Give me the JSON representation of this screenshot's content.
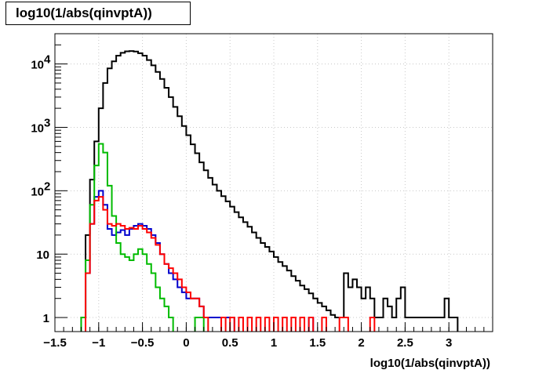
{
  "title": "log10(1/abs(qinvptA))",
  "chart_data": {
    "type": "line",
    "title": "log10(1/abs(qinvptA))",
    "xlabel": "log10(1/abs(qinvptA))",
    "ylabel": "",
    "xlim": [
      -1.5,
      3.5
    ],
    "ylim": [
      0.6,
      30000
    ],
    "yscale": "log",
    "grid": true,
    "x_ticks": [
      -1.5,
      -1,
      -0.5,
      0,
      0.5,
      1,
      1.5,
      2,
      2.5,
      3
    ],
    "x_tick_labels": [
      "−1.5",
      "−1",
      "−0.5",
      "0",
      "0.5",
      "1",
      "1.5",
      "2",
      "2.5",
      "3"
    ],
    "y_ticks": [
      1,
      10,
      100,
      1000,
      10000
    ],
    "y_tick_labels": [
      {
        "base": "1",
        "exp": ""
      },
      {
        "base": "10",
        "exp": ""
      },
      {
        "base": "10",
        "exp": "2"
      },
      {
        "base": "10",
        "exp": "3"
      },
      {
        "base": "10",
        "exp": "4"
      }
    ],
    "series": [
      {
        "color": "#000000",
        "points": [
          [
            -1.2,
            1
          ],
          [
            -1.15,
            20
          ],
          [
            -1.1,
            150
          ],
          [
            -1.05,
            600
          ],
          [
            -1,
            2000
          ],
          [
            -0.95,
            5000
          ],
          [
            -0.9,
            8500
          ],
          [
            -0.85,
            11000
          ],
          [
            -0.8,
            13500
          ],
          [
            -0.75,
            15000
          ],
          [
            -0.7,
            15800
          ],
          [
            -0.65,
            16000
          ],
          [
            -0.6,
            15700
          ],
          [
            -0.55,
            14800
          ],
          [
            -0.5,
            13500
          ],
          [
            -0.45,
            11500
          ],
          [
            -0.4,
            9500
          ],
          [
            -0.35,
            7500
          ],
          [
            -0.3,
            5800
          ],
          [
            -0.25,
            4200
          ],
          [
            -0.2,
            3000
          ],
          [
            -0.15,
            2100
          ],
          [
            -0.1,
            1500
          ],
          [
            -0.05,
            1050
          ],
          [
            0,
            750
          ],
          [
            0.05,
            540
          ],
          [
            0.1,
            390
          ],
          [
            0.15,
            280
          ],
          [
            0.2,
            210
          ],
          [
            0.25,
            160
          ],
          [
            0.3,
            125
          ],
          [
            0.35,
            100
          ],
          [
            0.4,
            82
          ],
          [
            0.45,
            68
          ],
          [
            0.5,
            56
          ],
          [
            0.55,
            46
          ],
          [
            0.6,
            38
          ],
          [
            0.65,
            32
          ],
          [
            0.7,
            27
          ],
          [
            0.75,
            22
          ],
          [
            0.8,
            18
          ],
          [
            0.85,
            15
          ],
          [
            0.9,
            13
          ],
          [
            0.95,
            11
          ],
          [
            1,
            9
          ],
          [
            1.05,
            7.5
          ],
          [
            1.1,
            6.5
          ],
          [
            1.15,
            5.5
          ],
          [
            1.2,
            4.5
          ],
          [
            1.25,
            3.8
          ],
          [
            1.3,
            3.2
          ],
          [
            1.35,
            2.8
          ],
          [
            1.4,
            2.4
          ],
          [
            1.45,
            2
          ],
          [
            1.5,
            1.7
          ],
          [
            1.55,
            1.5
          ],
          [
            1.6,
            1.3
          ],
          [
            1.65,
            1.1
          ],
          [
            1.7,
            1
          ],
          [
            1.75,
            1
          ],
          [
            1.8,
            5
          ],
          [
            1.85,
            3
          ],
          [
            1.9,
            4
          ],
          [
            1.95,
            3
          ],
          [
            2,
            2
          ],
          [
            2.05,
            3
          ],
          [
            2.1,
            2
          ],
          [
            2.15,
            1
          ],
          [
            2.2,
            1
          ],
          [
            2.25,
            2
          ],
          [
            2.3,
            1.5
          ],
          [
            2.35,
            1
          ],
          [
            2.4,
            2
          ],
          [
            2.45,
            3
          ],
          [
            2.5,
            1
          ],
          [
            2.55,
            1
          ],
          [
            2.6,
            1
          ],
          [
            2.65,
            1
          ],
          [
            2.7,
            1
          ],
          [
            2.75,
            1
          ],
          [
            2.8,
            1
          ],
          [
            2.85,
            1
          ],
          [
            2.9,
            1
          ],
          [
            2.95,
            2
          ],
          [
            3,
            1
          ],
          [
            3.05,
            1
          ]
        ]
      },
      {
        "color": "#0000cc",
        "points": [
          [
            -1.2,
            1
          ],
          [
            -1.15,
            5
          ],
          [
            -1.1,
            30
          ],
          [
            -1.05,
            80
          ],
          [
            -1,
            100
          ],
          [
            -0.95,
            60
          ],
          [
            -0.9,
            25
          ],
          [
            -0.85,
            20
          ],
          [
            -0.8,
            22
          ],
          [
            -0.75,
            24
          ],
          [
            -0.7,
            20
          ],
          [
            -0.65,
            25
          ],
          [
            -0.6,
            28
          ],
          [
            -0.55,
            30
          ],
          [
            -0.5,
            28
          ],
          [
            -0.45,
            25
          ],
          [
            -0.4,
            20
          ],
          [
            -0.35,
            15
          ],
          [
            -0.3,
            10
          ],
          [
            -0.25,
            7
          ],
          [
            -0.2,
            5
          ],
          [
            -0.15,
            4
          ],
          [
            -0.1,
            3
          ],
          [
            -0.05,
            2.5
          ],
          [
            0,
            2
          ],
          [
            0.05,
            2
          ],
          [
            0.1,
            2
          ],
          [
            0.15,
            1.5
          ],
          [
            0.2,
            1
          ],
          [
            0.25,
            1
          ],
          [
            0.3,
            1
          ],
          [
            0.35,
            1
          ],
          [
            0.4,
            1
          ],
          [
            0.45,
            1
          ],
          [
            0.5,
            1
          ],
          [
            1.4,
            1
          ]
        ]
      },
      {
        "color": "#00bb00",
        "points": [
          [
            -1.2,
            1
          ],
          [
            -1.15,
            8
          ],
          [
            -1.1,
            60
          ],
          [
            -1.05,
            250
          ],
          [
            -1,
            550
          ],
          [
            -0.95,
            400
          ],
          [
            -0.9,
            120
          ],
          [
            -0.85,
            40
          ],
          [
            -0.8,
            15
          ],
          [
            -0.75,
            10
          ],
          [
            -0.7,
            9
          ],
          [
            -0.65,
            8
          ],
          [
            -0.6,
            10
          ],
          [
            -0.55,
            12
          ],
          [
            -0.5,
            10
          ],
          [
            -0.45,
            7
          ],
          [
            -0.4,
            5
          ],
          [
            -0.35,
            3
          ],
          [
            -0.3,
            2
          ],
          [
            -0.25,
            1.5
          ],
          [
            -0.2,
            1
          ],
          [
            0.1,
            1
          ],
          [
            0.15,
            1
          ]
        ]
      },
      {
        "color": "#ff0000",
        "points": [
          [
            -1.15,
            5
          ],
          [
            -1.1,
            30
          ],
          [
            -1.05,
            70
          ],
          [
            -1,
            80
          ],
          [
            -0.95,
            50
          ],
          [
            -0.9,
            30
          ],
          [
            -0.85,
            28
          ],
          [
            -0.8,
            30
          ],
          [
            -0.75,
            28
          ],
          [
            -0.7,
            25
          ],
          [
            -0.65,
            26
          ],
          [
            -0.6,
            25
          ],
          [
            -0.55,
            28
          ],
          [
            -0.5,
            25
          ],
          [
            -0.45,
            22
          ],
          [
            -0.4,
            18
          ],
          [
            -0.35,
            14
          ],
          [
            -0.3,
            10
          ],
          [
            -0.25,
            7
          ],
          [
            -0.2,
            6
          ],
          [
            -0.15,
            5
          ],
          [
            -0.1,
            4
          ],
          [
            -0.05,
            3
          ],
          [
            0,
            2.5
          ],
          [
            0.05,
            2
          ],
          [
            0.1,
            2
          ],
          [
            0.15,
            1.5
          ],
          [
            0.2,
            1
          ],
          [
            0.4,
            1
          ],
          [
            0.5,
            1
          ],
          [
            0.6,
            1
          ],
          [
            0.7,
            1
          ],
          [
            0.8,
            1
          ],
          [
            0.9,
            1
          ],
          [
            1,
            1
          ],
          [
            1.1,
            1
          ],
          [
            1.2,
            1
          ],
          [
            1.3,
            1
          ],
          [
            1.4,
            1
          ],
          [
            1.55,
            1
          ],
          [
            1.75,
            1
          ],
          [
            1.8,
            1
          ],
          [
            2.1,
            1
          ]
        ]
      }
    ]
  }
}
